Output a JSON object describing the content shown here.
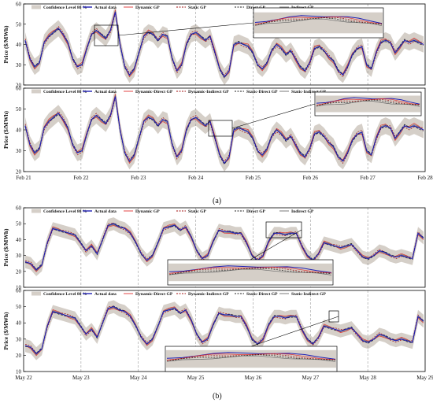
{
  "caption_a": "(a)",
  "caption_b": "(b)",
  "colors": {
    "band": "#d5cfc8",
    "actual": "#1f1fb4",
    "dynamic": "#e03030",
    "static": "#a01010",
    "direct": "#222222",
    "indirect": "#6a6a6a",
    "divider": "#9a9a9a"
  },
  "legend_top": [
    "Confidence Level 80 %",
    "Actual data",
    "Dynamic GP",
    "Static GP",
    "Direct GP",
    "Indirect GP"
  ],
  "legend_bottom": [
    "Confidence Level 80 %",
    "Actual data",
    "Dynamic-Direct GP",
    "Dynamic-Indirect GP",
    "Static-Direct GP",
    "Static-Indirect GP"
  ],
  "chart_data": [
    {
      "type": "line",
      "panel": "a-top",
      "ylabel": "Price ($/MWh)",
      "ylim": [
        20,
        60
      ],
      "yticks": [
        20,
        30,
        40,
        50,
        60
      ],
      "x_range": [
        "Feb 21",
        "Feb 28"
      ],
      "series": [
        {
          "name": "Actual data",
          "values": [
            42,
            33,
            29,
            31,
            41,
            44,
            46,
            48,
            45,
            41,
            33,
            29,
            30,
            38,
            45,
            47,
            45,
            43,
            47,
            56,
            40,
            29,
            25,
            28,
            36,
            44,
            46,
            45,
            42,
            45,
            44,
            33,
            27,
            30,
            40,
            45,
            46,
            44,
            42,
            44,
            36,
            28,
            24,
            27,
            40,
            41,
            40,
            39,
            36,
            30,
            28,
            31,
            37,
            40,
            38,
            35,
            37,
            33,
            29,
            27,
            31,
            38,
            39,
            37,
            34,
            32,
            27,
            25,
            29,
            35,
            38,
            39,
            30,
            28,
            36,
            41,
            42,
            41,
            36,
            39,
            42,
            41,
            42,
            41,
            40
          ]
        },
        {
          "name": "Dynamic GP",
          "values": [
            41,
            32,
            28,
            30,
            40,
            43,
            45,
            47,
            44,
            40,
            32,
            28,
            29,
            37,
            44,
            46,
            44,
            42,
            46,
            53,
            39,
            28,
            24,
            27,
            35,
            43,
            45,
            44,
            41,
            44,
            43,
            32,
            26,
            29,
            39,
            44,
            45,
            43,
            41,
            43,
            35,
            27,
            23,
            26,
            39,
            40,
            39,
            38,
            35,
            29,
            27,
            30,
            36,
            39,
            37,
            34,
            36,
            32,
            28,
            26,
            30,
            37,
            38,
            36,
            33,
            31,
            26,
            24,
            28,
            34,
            37,
            38,
            29,
            27,
            35,
            40,
            41,
            40,
            35,
            38,
            41,
            40,
            41,
            40,
            39
          ]
        }
      ],
      "band": "Confidence Level 80 %"
    },
    {
      "type": "line",
      "panel": "a-bottom",
      "ylabel": "Price ($/MWh)",
      "ylim": [
        20,
        60
      ],
      "yticks": [
        20,
        30,
        40,
        50,
        60
      ],
      "xticks": [
        "Feb 21",
        "Feb 22",
        "Feb 23",
        "Feb 24",
        "Feb 25",
        "Feb 26",
        "Feb 27",
        "Feb 28"
      ],
      "series": [
        {
          "name": "Actual data",
          "values": [
            42,
            33,
            29,
            31,
            41,
            44,
            46,
            48,
            45,
            41,
            33,
            29,
            30,
            38,
            45,
            47,
            45,
            43,
            47,
            56,
            40,
            29,
            25,
            28,
            36,
            44,
            46,
            45,
            42,
            45,
            44,
            33,
            27,
            30,
            40,
            45,
            46,
            44,
            42,
            44,
            36,
            28,
            24,
            27,
            40,
            41,
            40,
            39,
            36,
            30,
            28,
            31,
            37,
            40,
            38,
            35,
            37,
            33,
            29,
            27,
            31,
            38,
            39,
            37,
            34,
            32,
            27,
            25,
            29,
            35,
            38,
            39,
            30,
            28,
            36,
            41,
            42,
            41,
            36,
            39,
            42,
            41,
            42,
            41,
            40
          ]
        }
      ],
      "band": "Confidence Level 80 %"
    },
    {
      "type": "line",
      "panel": "b-top",
      "ylabel": "Price ($/MWh)",
      "ylim": [
        10,
        60
      ],
      "yticks": [
        10,
        20,
        30,
        40,
        50,
        60
      ],
      "series": [
        {
          "name": "Actual data",
          "values": [
            26,
            25,
            21,
            24,
            38,
            47,
            46,
            45,
            44,
            43,
            38,
            33,
            36,
            31,
            40,
            49,
            50,
            48,
            47,
            44,
            38,
            31,
            27,
            30,
            38,
            47,
            48,
            49,
            46,
            48,
            42,
            33,
            28,
            30,
            39,
            46,
            45,
            45,
            44,
            44,
            38,
            30,
            27,
            30,
            39,
            44,
            44,
            43,
            44,
            44,
            36,
            30,
            27,
            31,
            38,
            37,
            36,
            35,
            36,
            37,
            33,
            29,
            28,
            30,
            33,
            32,
            30,
            29,
            30,
            29,
            28,
            44,
            41
          ]
        }
      ],
      "band": "Confidence Level 80 %"
    },
    {
      "type": "line",
      "panel": "b-bottom",
      "ylabel": "Price ($/MWh)",
      "ylim": [
        10,
        60
      ],
      "yticks": [
        10,
        20,
        30,
        40,
        50,
        60
      ],
      "xticks": [
        "May 22",
        "May 23",
        "May 24",
        "May 25",
        "May 26",
        "May 27",
        "May 28",
        "May 29"
      ],
      "series": [
        {
          "name": "Actual data",
          "values": [
            26,
            25,
            21,
            24,
            38,
            47,
            46,
            45,
            44,
            43,
            38,
            33,
            36,
            31,
            40,
            49,
            50,
            48,
            47,
            44,
            38,
            31,
            27,
            30,
            38,
            47,
            48,
            49,
            46,
            48,
            42,
            33,
            28,
            30,
            39,
            46,
            45,
            45,
            44,
            44,
            38,
            30,
            27,
            30,
            39,
            44,
            44,
            43,
            44,
            44,
            36,
            30,
            27,
            31,
            38,
            37,
            36,
            35,
            36,
            37,
            33,
            29,
            28,
            30,
            33,
            32,
            30,
            29,
            30,
            29,
            28,
            44,
            41
          ]
        }
      ],
      "band": "Confidence Level 80 %"
    }
  ]
}
